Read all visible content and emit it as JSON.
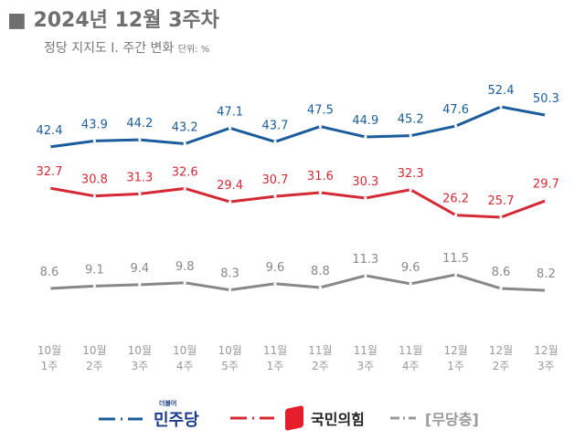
{
  "header": {
    "title": "■ 2024년 12월 3주차",
    "subtitle": "정당 지지도 Ⅰ. 주간 변화",
    "unit": "단위: %"
  },
  "chart_data": {
    "type": "line",
    "categories": [
      "10월 1주",
      "10월 2주",
      "10월 3주",
      "10월 4주",
      "10월 5주",
      "11월 1주",
      "11월 2주",
      "11월 3주",
      "11월 4주",
      "12월 1주",
      "12월 2주",
      "12월 3주"
    ],
    "series": [
      {
        "name": "더불어 민주당",
        "color": "#1b5c9c",
        "values": [
          42.4,
          43.9,
          44.2,
          43.2,
          47.1,
          43.7,
          47.5,
          44.9,
          45.2,
          47.6,
          52.4,
          50.3
        ]
      },
      {
        "name": "국민의힘",
        "color": "#d42a35",
        "values": [
          32.7,
          30.8,
          31.3,
          32.6,
          29.4,
          30.7,
          31.6,
          30.3,
          32.3,
          26.2,
          25.7,
          29.7
        ]
      },
      {
        "name": "[무당층]",
        "color": "#888888",
        "values": [
          8.6,
          9.1,
          9.4,
          9.8,
          8.3,
          9.6,
          8.8,
          11.3,
          9.6,
          11.5,
          8.6,
          8.2
        ]
      }
    ],
    "legend": "bottom",
    "grid": false
  },
  "legend": {
    "dem_small": "더불어",
    "dem": "민주당",
    "ppp": "국민의힘",
    "none": "[무당층]"
  }
}
